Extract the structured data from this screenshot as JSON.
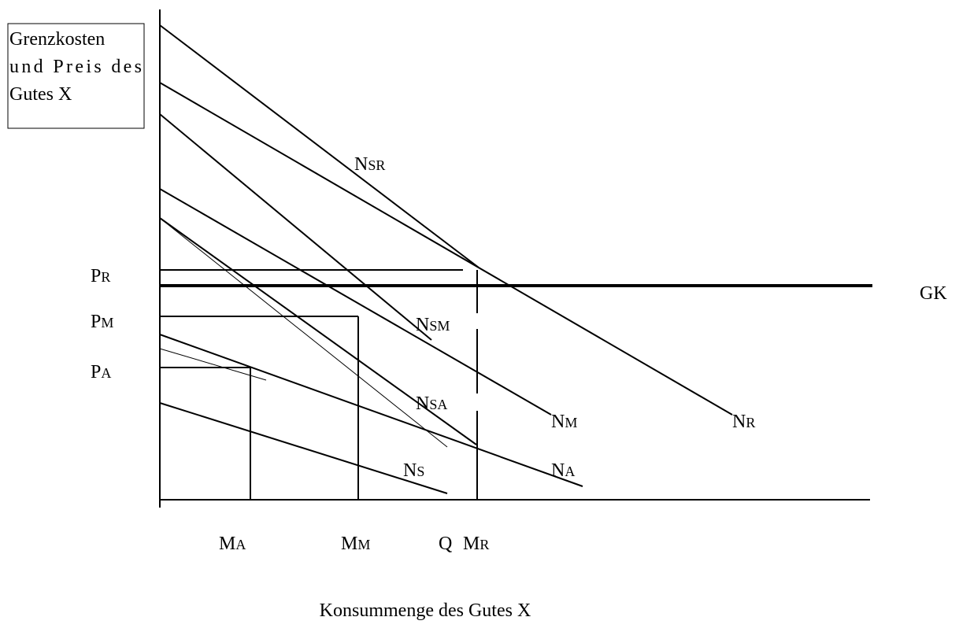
{
  "y_axis_box": [
    "Grenzkosten",
    "und Preis des",
    "Gutes X"
  ],
  "labels": {
    "PR": {
      "main": "P",
      "sub": "R"
    },
    "PM": {
      "main": "P",
      "sub": "M"
    },
    "PA": {
      "main": "P",
      "sub": "A"
    },
    "GK": "GK",
    "NSR": {
      "main": "N",
      "sub": "SR"
    },
    "NSM": {
      "main": "N",
      "sub": "SM"
    },
    "NM": {
      "main": "N",
      "sub": "M"
    },
    "NR": {
      "main": "N",
      "sub": "R"
    },
    "NSA": {
      "main": "N",
      "sub": "SA"
    },
    "NA": {
      "main": "N",
      "sub": "A"
    },
    "NS": {
      "main": "N",
      "sub": "S"
    },
    "MA": {
      "main": "M",
      "sub": "A"
    },
    "MM": {
      "main": "M",
      "sub": "M"
    },
    "Q": "Q",
    "MR": {
      "main": "M",
      "sub": "R"
    }
  },
  "x_axis_label": "Konsummenge des Gutes X"
}
